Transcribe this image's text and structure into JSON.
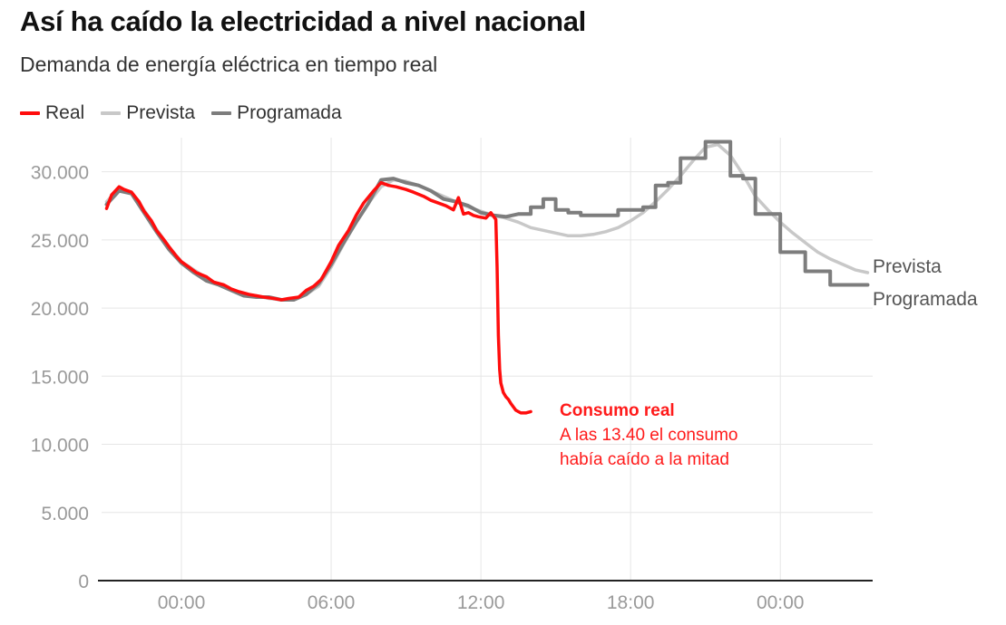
{
  "title": "Así ha caído la electricidad a nivel nacional",
  "subtitle": "Demanda de energía eléctrica en tiempo real",
  "legend": [
    {
      "name": "Real",
      "color": "#ff0d0d"
    },
    {
      "name": "Prevista",
      "color": "#c8c8c8"
    },
    {
      "name": "Programada",
      "color": "#7d7d7d"
    }
  ],
  "annotation": {
    "title": "Consumo real",
    "line1": "A las 13.40 el consumo",
    "line2": "había caído a la mitad"
  },
  "end_labels": {
    "prevista": "Prevista",
    "programada": "Programada"
  },
  "chart_data": {
    "type": "line",
    "title": "Así ha caído la electricidad a nivel nacional",
    "subtitle": "Demanda de energía eléctrica en tiempo real",
    "x_unit": "hours relative to 00:00 of the day of the blackout (negative = previous evening)",
    "xlim": [
      -3.2,
      27.7
    ],
    "ylim": [
      0,
      32500
    ],
    "yticks": [
      0,
      5000,
      10000,
      15000,
      20000,
      25000,
      30000
    ],
    "ytick_labels": [
      "0",
      "5.000",
      "10.000",
      "15.000",
      "20.000",
      "25.000",
      "30.000"
    ],
    "xticks": [
      0,
      6,
      12,
      18,
      24
    ],
    "xtick_labels": [
      "00:00",
      "06:00",
      "12:00",
      "18:00",
      "00:00"
    ],
    "grid": true,
    "legend_position": "top-left",
    "series": [
      {
        "name": "Real",
        "color": "#ff0d0d",
        "x": [
          -3.0,
          -2.8,
          -2.5,
          -2.3,
          -2.0,
          -1.7,
          -1.5,
          -1.2,
          -1.0,
          -0.7,
          -0.5,
          -0.2,
          0.0,
          0.3,
          0.6,
          1.0,
          1.3,
          1.7,
          2.0,
          2.3,
          2.7,
          3.0,
          3.3,
          3.7,
          4.0,
          4.3,
          4.7,
          5.0,
          5.3,
          5.6,
          6.0,
          6.3,
          6.7,
          7.0,
          7.3,
          7.7,
          8.0,
          8.3,
          8.6,
          9.0,
          9.3,
          9.7,
          10.0,
          10.3,
          10.6,
          10.9,
          11.1,
          11.3,
          11.5,
          11.7,
          11.9,
          12.2,
          12.4,
          12.6,
          12.65,
          12.7,
          12.75,
          12.8,
          12.9,
          13.0,
          13.1,
          13.2,
          13.4,
          13.6,
          13.8,
          14.0
        ],
        "y": [
          27300,
          28300,
          28900,
          28700,
          28500,
          27800,
          27100,
          26400,
          25700,
          25000,
          24500,
          23800,
          23400,
          23000,
          22600,
          22300,
          21900,
          21700,
          21400,
          21200,
          21000,
          20900,
          20800,
          20700,
          20600,
          20700,
          20800,
          21300,
          21600,
          22100,
          23400,
          24600,
          25700,
          26800,
          27700,
          28600,
          29200,
          29000,
          28900,
          28700,
          28500,
          28200,
          27900,
          27700,
          27500,
          27200,
          28100,
          26900,
          27000,
          26800,
          26700,
          26600,
          27000,
          26500,
          23000,
          18000,
          15500,
          14500,
          13800,
          13500,
          13300,
          13000,
          12500,
          12300,
          12300,
          12400
        ]
      },
      {
        "name": "Prevista",
        "color": "#c8c8c8",
        "x": [
          -3.0,
          -2.5,
          -2.0,
          -1.5,
          -1.0,
          -0.5,
          0.0,
          0.5,
          1.0,
          1.5,
          2.0,
          2.5,
          3.0,
          3.5,
          4.0,
          4.5,
          5.0,
          5.5,
          6.0,
          6.5,
          7.0,
          7.5,
          8.0,
          8.5,
          9.0,
          9.5,
          10.0,
          10.5,
          11.0,
          11.5,
          12.0,
          12.5,
          13.0,
          13.5,
          14.0,
          14.5,
          15.0,
          15.5,
          16.0,
          16.5,
          17.0,
          17.5,
          18.0,
          18.5,
          19.0,
          19.5,
          20.0,
          20.5,
          21.0,
          21.5,
          22.0,
          22.5,
          23.0,
          23.5,
          24.0,
          24.5,
          25.0,
          25.5,
          26.0,
          26.5,
          27.0,
          27.5
        ],
        "y": [
          27800,
          28800,
          28500,
          27200,
          25800,
          24500,
          23400,
          22800,
          22200,
          21700,
          21300,
          21000,
          20900,
          20700,
          20600,
          20700,
          21000,
          21600,
          23000,
          24700,
          26300,
          27700,
          28900,
          29400,
          29300,
          29000,
          28600,
          28200,
          27800,
          27400,
          27100,
          26800,
          26600,
          26300,
          25900,
          25700,
          25500,
          25300,
          25300,
          25400,
          25600,
          25900,
          26400,
          27000,
          27800,
          28700,
          29700,
          30800,
          31800,
          32000,
          31200,
          29800,
          28200,
          27200,
          26300,
          25500,
          24800,
          24100,
          23600,
          23200,
          22800,
          22600
        ]
      },
      {
        "name": "Programada",
        "color": "#7d7d7d",
        "x": [
          -3.0,
          -2.5,
          -2.0,
          -1.5,
          -1.0,
          -0.5,
          0.0,
          0.5,
          1.0,
          1.5,
          2.0,
          2.5,
          3.0,
          3.5,
          4.0,
          4.5,
          5.0,
          5.5,
          6.0,
          6.5,
          7.0,
          7.5,
          8.0,
          8.5,
          9.0,
          9.5,
          10.0,
          10.5,
          11.0,
          11.5,
          12.0,
          12.5,
          13.0,
          13.5,
          14.0,
          14.5,
          15.0,
          15.5,
          16.0,
          16.5,
          17.0,
          17.5,
          18.0,
          18.5,
          19.0,
          19.5,
          20.0,
          20.5,
          21.0,
          21.5,
          22.0,
          22.5,
          23.0,
          23.5,
          24.0,
          24.5,
          25.0,
          25.5,
          26.0,
          26.5,
          27.0,
          27.5
        ],
        "y": [
          27600,
          28600,
          28400,
          27000,
          25600,
          24300,
          23300,
          22600,
          22000,
          21700,
          21300,
          20900,
          20800,
          20800,
          20600,
          20600,
          21000,
          21800,
          23200,
          24800,
          26300,
          27700,
          29400,
          29500,
          29200,
          29000,
          28600,
          28000,
          27800,
          27500,
          27000,
          26800,
          26700,
          26900,
          27400,
          28000,
          27200,
          27000,
          26800,
          26800,
          26800,
          27200,
          27200,
          27400,
          29000,
          29200,
          31000,
          31000,
          32200,
          32200,
          29700,
          29500,
          26900,
          26900,
          24100,
          24100,
          22700,
          22700,
          21700,
          21700,
          21700,
          21700
        ]
      }
    ]
  }
}
